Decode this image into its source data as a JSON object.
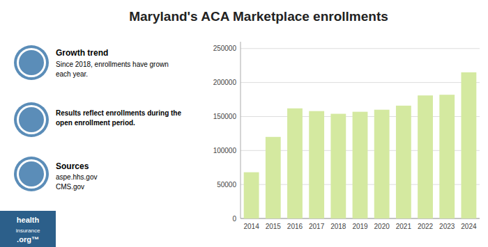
{
  "chart_data": {
    "type": "bar",
    "title": "Maryland's ACA Marketplace enrollments",
    "categories": [
      "2014",
      "2015",
      "2016",
      "2017",
      "2018",
      "2019",
      "2020",
      "2021",
      "2022",
      "2023",
      "2024"
    ],
    "values": [
      68000,
      120000,
      162000,
      158000,
      154000,
      157000,
      160000,
      166000,
      181000,
      182000,
      215000
    ],
    "color": "#d4e9a0",
    "ylim": [
      0,
      260000
    ],
    "yticks": [
      0,
      50000,
      100000,
      150000,
      200000,
      250000
    ],
    "grid": true,
    "annotations": [
      "Growth trend",
      "Since 2018, enrollments have grown\neach year.",
      "Results reflect enrollments during the\nopen enrollment period.",
      "Sources",
      "aspe.hhs.gov\nCMS.gov",
      "health",
      "insurance",
      ".org™"
    ]
  }
}
